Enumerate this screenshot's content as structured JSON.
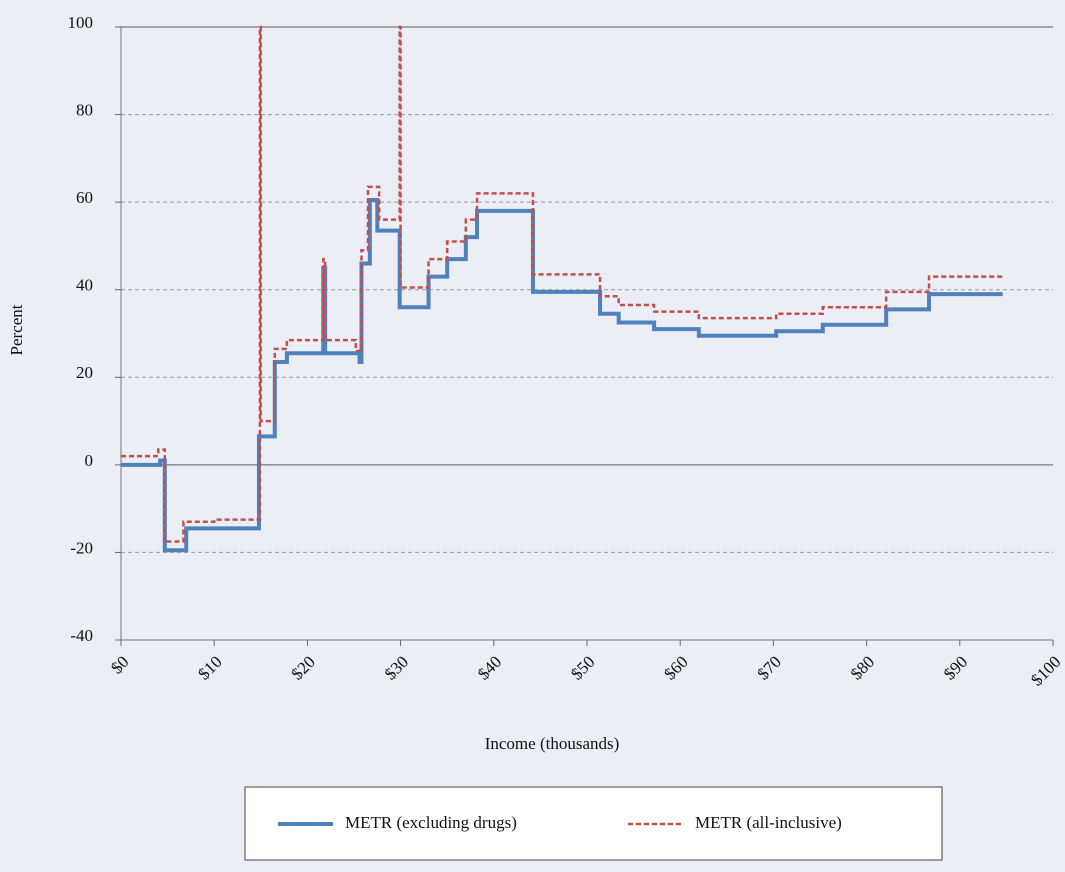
{
  "chart_data": {
    "type": "line",
    "step": "post",
    "xlabel": "Income (thousands)",
    "ylabel": "Percent",
    "xlim": [
      0,
      100
    ],
    "ylim": [
      -40,
      100
    ],
    "xticks": [
      {
        "value": 0,
        "label": "$0"
      },
      {
        "value": 10,
        "label": "$10"
      },
      {
        "value": 20,
        "label": "$20"
      },
      {
        "value": 30,
        "label": "$30"
      },
      {
        "value": 40,
        "label": "$40"
      },
      {
        "value": 50,
        "label": "$50"
      },
      {
        "value": 60,
        "label": "$60"
      },
      {
        "value": 70,
        "label": "$70"
      },
      {
        "value": 80,
        "label": "$80"
      },
      {
        "value": 90,
        "label": "$90"
      },
      {
        "value": 100,
        "label": "$100"
      }
    ],
    "yticks": [
      -40,
      -20,
      0,
      20,
      40,
      60,
      80,
      100
    ],
    "grid": true,
    "legend": "bottom",
    "series": [
      {
        "name": "METR (excluding drugs)",
        "color": "#4f81bd",
        "dash": false,
        "x": [
          0,
          4.2,
          4.7,
          7,
          14.8,
          16.5,
          17.8,
          21.7,
          21.9,
          25.6,
          25.8,
          26.7,
          27.5,
          29.9,
          33,
          35,
          37,
          38.2,
          44.2,
          51.4,
          53.4,
          57.2,
          62,
          70.3,
          75.3,
          82.1,
          86.7,
          94.6
        ],
        "values": [
          0,
          1,
          -19.5,
          -14.5,
          6.5,
          23.5,
          25.5,
          45,
          25.5,
          23.5,
          46,
          60.5,
          53.5,
          36,
          43,
          47,
          52,
          58,
          39.5,
          34.5,
          32.5,
          31,
          29.5,
          30.5,
          32,
          35.5,
          39,
          39
        ]
      },
      {
        "name": "METR (all-inclusive)",
        "color": "#c0504d",
        "dash": true,
        "x": [
          0,
          4.0,
          4.7,
          6.7,
          10,
          14.9,
          15.0,
          16.5,
          17.8,
          21.7,
          21.9,
          25.2,
          25.8,
          26.5,
          27.7,
          29.9,
          30.0,
          33,
          35,
          37,
          38.2,
          44.2,
          51.4,
          53.4,
          57.2,
          62,
          70.3,
          75.3,
          82.1,
          86.7,
          94.6
        ],
        "values": [
          2,
          3.5,
          -17.5,
          -13,
          -12.5,
          100,
          10,
          26.5,
          28.5,
          47,
          28.5,
          26,
          49,
          63.5,
          56,
          100,
          40.5,
          47,
          51,
          56,
          62,
          43.5,
          38.5,
          36.5,
          35,
          33.5,
          34.5,
          36,
          39.5,
          43,
          43
        ]
      }
    ]
  }
}
